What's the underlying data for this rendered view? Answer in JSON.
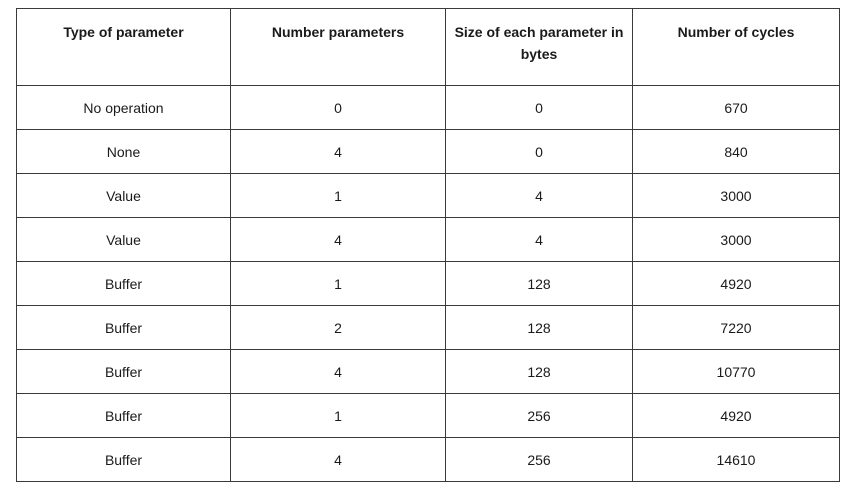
{
  "table": {
    "headers": [
      "Type of parameter",
      "Number parameters",
      "Size of each parameter in bytes",
      "Number of cycles"
    ],
    "rows": [
      [
        "No operation",
        "0",
        "0",
        "670"
      ],
      [
        "None",
        "4",
        "0",
        "840"
      ],
      [
        "Value",
        "1",
        "4",
        "3000"
      ],
      [
        "Value",
        "4",
        "4",
        "3000"
      ],
      [
        "Buffer",
        "1",
        "128",
        "4920"
      ],
      [
        "Buffer",
        "2",
        "128",
        "7220"
      ],
      [
        "Buffer",
        "4",
        "128",
        "10770"
      ],
      [
        "Buffer",
        "1",
        "256",
        "4920"
      ],
      [
        "Buffer",
        "4",
        "256",
        "14610"
      ]
    ]
  }
}
